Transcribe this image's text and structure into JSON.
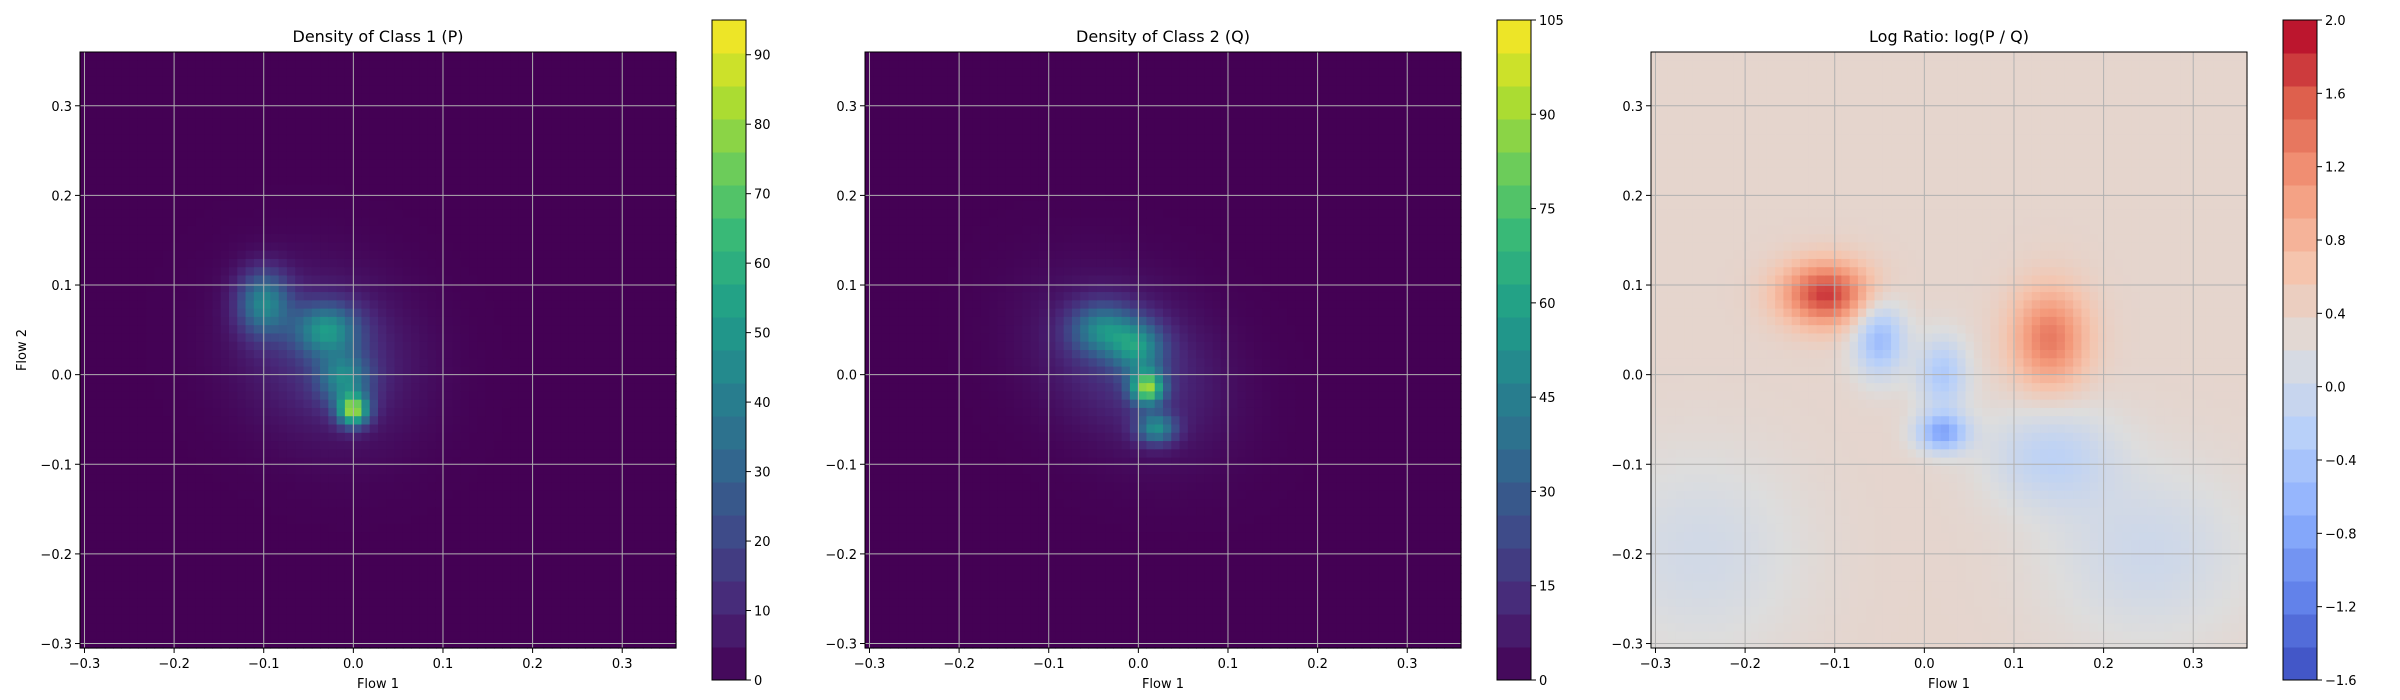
{
  "chart_data": [
    {
      "type": "heatmap",
      "title": "Density of Class 1 (P)",
      "xlabel": "Flow 1",
      "ylabel": "Flow 2",
      "xlim": [
        -0.305,
        0.36
      ],
      "ylim": [
        -0.305,
        0.36
      ],
      "x_ticks": [
        -0.3,
        -0.2,
        -0.1,
        0.0,
        0.1,
        0.2,
        0.3
      ],
      "y_ticks": [
        -0.3,
        -0.2,
        -0.1,
        0.0,
        0.1,
        0.2,
        0.3
      ],
      "x_tick_labels": [
        "−0.3",
        "−0.2",
        "−0.1",
        "0.0",
        "0.1",
        "0.2",
        "0.3"
      ],
      "y_tick_labels": [
        "−0.3",
        "−0.2",
        "−0.1",
        "0.0",
        "0.1",
        "0.2",
        "0.3"
      ],
      "grid": true,
      "colormap": "viridis",
      "colorbar": {
        "min": 0,
        "max": 95,
        "ticks": [
          0,
          10,
          20,
          30,
          40,
          50,
          60,
          70,
          80,
          90
        ],
        "tick_labels": [
          "0",
          "10",
          "20",
          "30",
          "40",
          "50",
          "60",
          "70",
          "80",
          "90"
        ]
      },
      "background_value": 0,
      "blobs": [
        {
          "x": -0.03,
          "y": 0.02,
          "sx": 0.07,
          "sy": 0.06,
          "rot": -35,
          "amp": 14
        },
        {
          "x": -0.1,
          "y": 0.08,
          "sx": 0.02,
          "sy": 0.025,
          "rot": 0,
          "amp": 40
        },
        {
          "x": -0.03,
          "y": 0.05,
          "sx": 0.025,
          "sy": 0.02,
          "rot": 0,
          "amp": 40
        },
        {
          "x": -0.01,
          "y": -0.005,
          "sx": 0.02,
          "sy": 0.02,
          "rot": 0,
          "amp": 35
        },
        {
          "x": 0.0,
          "y": -0.04,
          "sx": 0.012,
          "sy": 0.012,
          "rot": 0,
          "amp": 70
        }
      ]
    },
    {
      "type": "heatmap",
      "title": "Density of Class 2 (Q)",
      "xlabel": "Flow 1",
      "ylabel": "",
      "xlim": [
        -0.305,
        0.36
      ],
      "ylim": [
        -0.305,
        0.36
      ],
      "x_ticks": [
        -0.3,
        -0.2,
        -0.1,
        0.0,
        0.1,
        0.2,
        0.3
      ],
      "y_ticks": [
        -0.3,
        -0.2,
        -0.1,
        0.0,
        0.1,
        0.2,
        0.3
      ],
      "x_tick_labels": [
        "−0.3",
        "−0.2",
        "−0.1",
        "0.0",
        "0.1",
        "0.2",
        "0.3"
      ],
      "y_tick_labels": [
        "−0.3",
        "−0.2",
        "−0.1",
        "0.0",
        "0.1",
        "0.2",
        "0.3"
      ],
      "grid": true,
      "colormap": "viridis",
      "colorbar": {
        "min": 0,
        "max": 105,
        "ticks": [
          0,
          15,
          30,
          45,
          60,
          75,
          90,
          105
        ],
        "tick_labels": [
          "0",
          "15",
          "30",
          "45",
          "60",
          "75",
          "90",
          "105"
        ]
      },
      "background_value": 0,
      "blobs": [
        {
          "x": -0.01,
          "y": 0.01,
          "sx": 0.075,
          "sy": 0.055,
          "rot": -35,
          "amp": 16
        },
        {
          "x": -0.04,
          "y": 0.05,
          "sx": 0.025,
          "sy": 0.02,
          "rot": 0,
          "amp": 40
        },
        {
          "x": 0.0,
          "y": 0.03,
          "sx": 0.02,
          "sy": 0.02,
          "rot": 0,
          "amp": 40
        },
        {
          "x": 0.01,
          "y": -0.015,
          "sx": 0.013,
          "sy": 0.013,
          "rot": 0,
          "amp": 75
        },
        {
          "x": 0.02,
          "y": -0.06,
          "sx": 0.015,
          "sy": 0.012,
          "rot": 0,
          "amp": 45
        }
      ]
    },
    {
      "type": "heatmap",
      "title": "Log Ratio: log(P / Q)",
      "xlabel": "Flow 1",
      "ylabel": "",
      "xlim": [
        -0.305,
        0.36
      ],
      "ylim": [
        -0.305,
        0.36
      ],
      "x_ticks": [
        -0.3,
        -0.2,
        -0.1,
        0.0,
        0.1,
        0.2,
        0.3
      ],
      "y_ticks": [
        -0.3,
        -0.2,
        -0.1,
        0.0,
        0.1,
        0.2,
        0.3
      ],
      "x_tick_labels": [
        "−0.3",
        "−0.2",
        "−0.1",
        "0.0",
        "0.1",
        "0.2",
        "0.3"
      ],
      "y_tick_labels": [
        "−0.3",
        "−0.2",
        "−0.1",
        "0.0",
        "0.1",
        "0.2",
        "0.3"
      ],
      "grid": true,
      "colormap": "coolwarm",
      "colorbar": {
        "min": -1.6,
        "max": 2.0,
        "ticks": [
          -1.6,
          -1.2,
          -0.8,
          -0.4,
          0.0,
          0.4,
          0.8,
          1.2,
          1.6,
          2.0
        ],
        "tick_labels": [
          "−1.6",
          "−1.2",
          "−0.8",
          "−0.4",
          "0.0",
          "0.4",
          "0.8",
          "1.2",
          "1.6",
          "2.0"
        ]
      },
      "background_value": 0.35,
      "blobs": [
        {
          "x": -0.11,
          "y": 0.09,
          "sx": 0.035,
          "sy": 0.025,
          "rot": 0,
          "amp": 1.4
        },
        {
          "x": 0.14,
          "y": 0.04,
          "sx": 0.03,
          "sy": 0.04,
          "rot": 0,
          "amp": 1.0
        },
        {
          "x": -0.05,
          "y": 0.04,
          "sx": 0.02,
          "sy": 0.03,
          "rot": 0,
          "amp": -0.9
        },
        {
          "x": 0.02,
          "y": 0.0,
          "sx": 0.02,
          "sy": 0.03,
          "rot": 0,
          "amp": -0.7
        },
        {
          "x": 0.02,
          "y": -0.065,
          "sx": 0.02,
          "sy": 0.015,
          "rot": 0,
          "amp": -1.1
        },
        {
          "x": 0.14,
          "y": -0.09,
          "sx": 0.05,
          "sy": 0.04,
          "rot": 0,
          "amp": -0.5
        },
        {
          "x": 0.25,
          "y": -0.2,
          "sx": 0.08,
          "sy": 0.07,
          "rot": 0,
          "amp": -0.35
        },
        {
          "x": -0.25,
          "y": -0.2,
          "sx": 0.08,
          "sy": 0.08,
          "rot": 0,
          "amp": -0.3
        }
      ]
    }
  ]
}
